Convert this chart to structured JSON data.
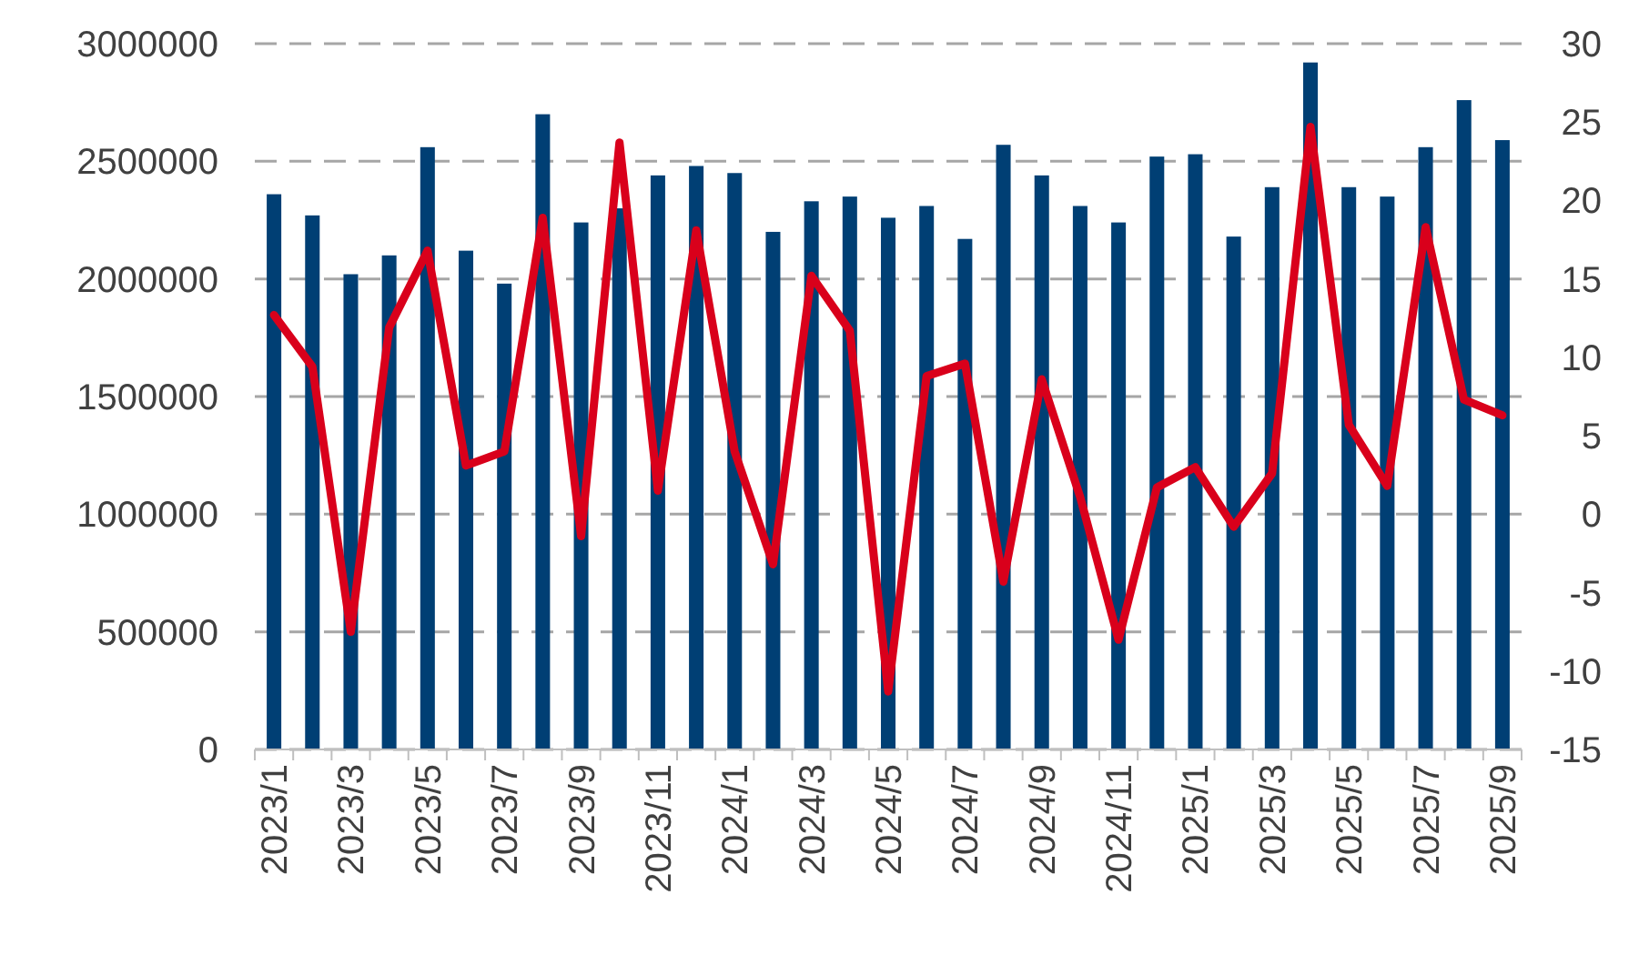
{
  "chart_data": {
    "type": "bar",
    "categories": [
      "2023/1",
      null,
      "2023/3",
      null,
      "2023/5",
      null,
      "2023/7",
      null,
      "2023/9",
      null,
      "2023/11",
      null,
      "2024/1",
      null,
      "2024/3",
      null,
      "2024/5",
      null,
      "2024/7",
      null,
      "2024/9",
      null,
      "2024/11",
      null,
      "2025/1",
      null,
      "2025/3",
      null,
      "2025/5",
      null,
      "2025/7",
      null,
      "2025/9"
    ],
    "series": [
      {
        "color": "#003f74",
        "values": [
          2360000,
          2270000,
          2020000,
          2100000,
          2560000,
          2120000,
          1980000,
          2700000,
          2240000,
          2300000,
          2440000,
          2480000,
          2450000,
          2200000,
          2330000,
          2350000,
          2260000,
          2310000,
          2170000,
          2570000,
          2440000,
          2310000,
          2240000,
          2520000,
          2530000,
          2180000,
          2390000,
          2920000,
          2390000,
          2350000,
          2560000,
          2760000,
          2590000
        ]
      },
      {
        "type": "line",
        "axis": "y2",
        "color": "#d9001b",
        "values": [
          12.7,
          9.4,
          -7.5,
          11.9,
          16.8,
          3.1,
          4.0,
          18.9,
          -1.4,
          23.7,
          1.5,
          18.1,
          4.0,
          -3.2,
          15.2,
          11.7,
          -11.3,
          8.8,
          9.6,
          -4.3,
          8.6,
          1.1,
          -8.0,
          1.7,
          3.0,
          -0.8,
          2.6,
          24.7,
          5.7,
          1.8,
          18.3,
          7.3,
          6.3
        ]
      }
    ],
    "ylim": [
      0,
      3000000
    ],
    "yticks": [
      0,
      500000,
      1000000,
      1500000,
      2000000,
      2500000,
      3000000
    ],
    "y2lim": [
      -15,
      30
    ],
    "y2ticks": [
      -15,
      -10,
      -5,
      0,
      5,
      10,
      15,
      20,
      25,
      30
    ],
    "grid": "y"
  }
}
